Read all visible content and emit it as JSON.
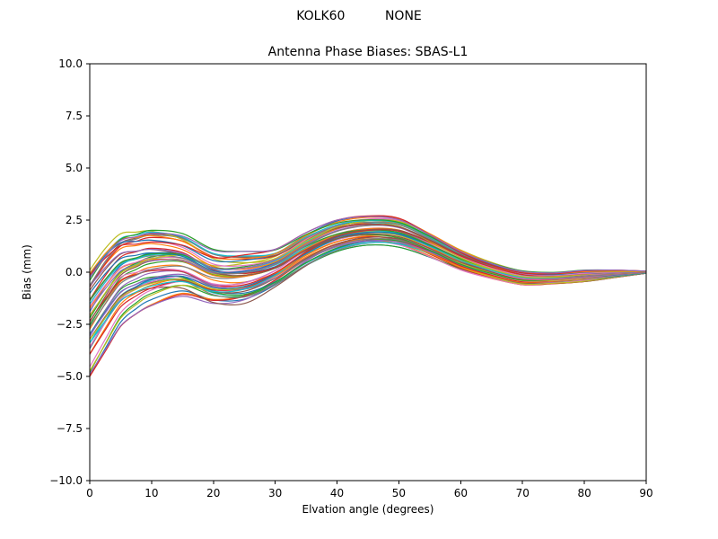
{
  "chart_data": {
    "type": "line",
    "suptitle": "KOLK60          NONE",
    "title": "Antenna Phase Biases: SBAS-L1",
    "xlabel": "Elvation angle (degrees)",
    "ylabel": "Bias (mm)",
    "xlim": [
      0,
      90
    ],
    "ylim": [
      -10,
      10
    ],
    "xticks": [
      0,
      10,
      20,
      30,
      40,
      50,
      60,
      70,
      80,
      90
    ],
    "xtick_labels": [
      "0",
      "10",
      "20",
      "30",
      "40",
      "50",
      "60",
      "70",
      "80",
      "90"
    ],
    "yticks": [
      -10.0,
      -7.5,
      -5.0,
      -2.5,
      0.0,
      2.5,
      5.0,
      7.5,
      10.0
    ],
    "ytick_labels": [
      "−10.0",
      "−7.5",
      "−5.0",
      "−2.5",
      "0.0",
      "2.5",
      "5.0",
      "7.5",
      "10.0"
    ],
    "grid": false,
    "legend": "none",
    "ensemble": {
      "note": "Dense spaghetti plot of ~55 per-satellite bias curves; values estimated from plot as band envelope (mm) at each elevation angle.",
      "num_lines": 55,
      "line_width": 1.2,
      "x": [
        0,
        2.5,
        5,
        7.5,
        10,
        15,
        20,
        25,
        30,
        35,
        40,
        45,
        50,
        55,
        60,
        65,
        70,
        75,
        80,
        85,
        90
      ],
      "envelope_upper": [
        0.3,
        1.3,
        2.0,
        2.1,
        2.2,
        1.9,
        1.1,
        1.0,
        1.1,
        1.9,
        2.5,
        2.7,
        2.6,
        1.9,
        1.1,
        0.5,
        0.1,
        0.0,
        0.1,
        0.1,
        0.05
      ],
      "envelope_lower": [
        -5.0,
        -3.8,
        -2.6,
        -2.0,
        -1.6,
        -1.2,
        -1.6,
        -1.5,
        -0.7,
        0.3,
        1.0,
        1.3,
        1.2,
        0.7,
        0.1,
        -0.3,
        -0.6,
        -0.55,
        -0.45,
        -0.25,
        -0.05
      ],
      "colors": [
        "#1f77b4",
        "#ff7f0e",
        "#2ca02c",
        "#d62728",
        "#9467bd",
        "#8c564b",
        "#e377c2",
        "#7f7f7f",
        "#bcbd22",
        "#17becf"
      ]
    },
    "text_color": "#000000",
    "spine_color": "#000000",
    "background": "#ffffff"
  }
}
